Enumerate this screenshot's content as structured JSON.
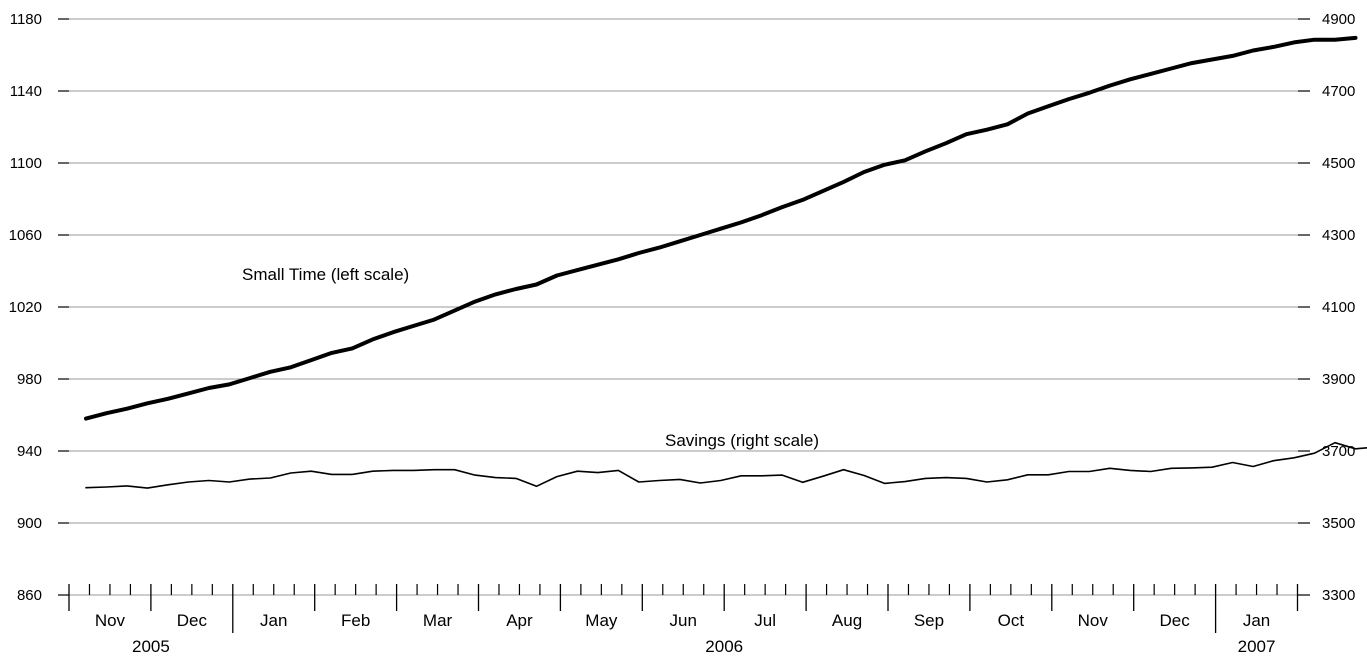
{
  "chart_data": {
    "type": "line",
    "left_axis": {
      "ylim": [
        860,
        1180
      ],
      "ticks": [
        860,
        900,
        940,
        980,
        1020,
        1060,
        1100,
        1140,
        1180
      ]
    },
    "right_axis": {
      "ylim": [
        3300,
        4900
      ],
      "ticks": [
        3300,
        3500,
        3700,
        3900,
        4100,
        4300,
        4500,
        4700,
        4900
      ]
    },
    "grid": true,
    "months": [
      "Nov",
      "Dec",
      "Jan",
      "Feb",
      "Mar",
      "Apr",
      "May",
      "Jun",
      "Jul",
      "Aug",
      "Sep",
      "Oct",
      "Nov",
      "Dec",
      "Jan"
    ],
    "years": [
      {
        "label": "2005",
        "start_month": 0,
        "end_month": 1
      },
      {
        "label": "2006",
        "start_month": 2,
        "end_month": 13
      },
      {
        "label": "2007",
        "start_month": 14,
        "end_month": 14
      }
    ],
    "weeks_per_month": 4,
    "series": [
      {
        "name": "Small Time (left scale)",
        "axis": "left",
        "color": "#000000",
        "values": [
          958,
          961,
          963.5,
          966.5,
          969,
          972,
          975,
          977,
          980.5,
          984,
          986.5,
          990.5,
          994.5,
          997,
          1002,
          1006,
          1009.5,
          1013,
          1018,
          1023,
          1027,
          1030,
          1032.5,
          1037.5,
          1040.5,
          1043.5,
          1046.5,
          1050,
          1053,
          1056.5,
          1060,
          1063.5,
          1067,
          1071,
          1075.5,
          1079.5,
          1084.5,
          1089.5,
          1095,
          1099,
          1101.5,
          1106.5,
          1111,
          1116,
          1118.5,
          1121.5,
          1127.5,
          1131.5,
          1135.5,
          1139,
          1143,
          1146.5,
          1149.5,
          1152.5,
          1155.5,
          1157.5,
          1159.5,
          1162.5,
          1164.5,
          1167,
          1168.5,
          1168.5,
          1169.5
        ]
      },
      {
        "name": "Savings (right scale)",
        "axis": "right",
        "color": "#000000",
        "values": [
          3598,
          3600,
          3603,
          3597,
          3606,
          3614,
          3618,
          3614,
          3622,
          3625,
          3639,
          3644,
          3635,
          3635,
          3644,
          3646,
          3646,
          3648,
          3648,
          3633,
          3626,
          3624,
          3602,
          3629,
          3644,
          3640,
          3646,
          3614,
          3618,
          3621,
          3611,
          3618,
          3631,
          3631,
          3633,
          3613,
          3630,
          3648,
          3632,
          3610,
          3615,
          3624,
          3626,
          3624,
          3614,
          3620,
          3634,
          3634,
          3643,
          3643,
          3652,
          3646,
          3643,
          3652,
          3653,
          3655,
          3668,
          3657,
          3673,
          3681,
          3694,
          3723,
          3706,
          3711
        ]
      }
    ]
  }
}
